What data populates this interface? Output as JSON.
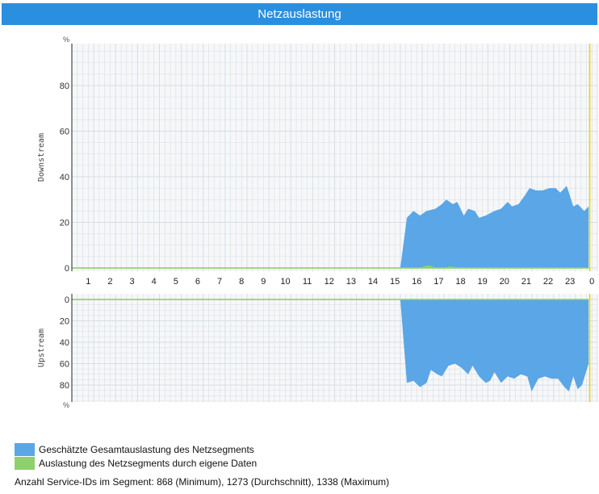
{
  "header": {
    "title": "Netzauslastung"
  },
  "colors": {
    "header_bg": "#2b8fe0",
    "total_fill": "#5aa6e6",
    "own_fill": "#8fd06a",
    "grid": "#d8dee6",
    "current_hour_line": "#e8d200"
  },
  "chart_data": {
    "type": "area",
    "x_ticks": [
      "1",
      "2",
      "3",
      "4",
      "5",
      "6",
      "7",
      "8",
      "9",
      "10",
      "11",
      "12",
      "13",
      "14",
      "15",
      "16",
      "17",
      "18",
      "19",
      "20",
      "21",
      "22",
      "23",
      "0"
    ],
    "grid": true,
    "panels": [
      {
        "name": "downstream",
        "ylabel": "Downstream",
        "unit": "%",
        "ylim": [
          0,
          100
        ],
        "y_ticks": [
          0,
          20,
          40,
          60,
          80
        ],
        "series": [
          {
            "name": "Geschätzte Gesamtauslastung des Netzsegments",
            "color": "#5aa6e6",
            "points": [
              [
                15.0,
                0
              ],
              [
                15.3,
                22
              ],
              [
                15.6,
                25
              ],
              [
                15.9,
                23
              ],
              [
                16.2,
                25
              ],
              [
                16.6,
                26
              ],
              [
                16.9,
                28
              ],
              [
                17.1,
                30
              ],
              [
                17.4,
                28
              ],
              [
                17.6,
                29
              ],
              [
                17.9,
                23
              ],
              [
                18.1,
                26
              ],
              [
                18.4,
                25
              ],
              [
                18.6,
                22
              ],
              [
                18.9,
                23
              ],
              [
                19.3,
                25
              ],
              [
                19.6,
                26
              ],
              [
                19.9,
                29
              ],
              [
                20.1,
                27
              ],
              [
                20.4,
                28
              ],
              [
                20.7,
                32
              ],
              [
                20.9,
                35
              ],
              [
                21.2,
                34
              ],
              [
                21.5,
                34
              ],
              [
                21.8,
                35
              ],
              [
                22.1,
                35
              ],
              [
                22.3,
                33
              ],
              [
                22.6,
                36
              ],
              [
                22.9,
                27
              ],
              [
                23.1,
                28
              ],
              [
                23.4,
                25
              ],
              [
                23.6,
                27
              ]
            ]
          },
          {
            "name": "Auslastung des Netzsegments durch eigene Daten",
            "color": "#8fd06a",
            "points": [
              [
                0,
                0
              ],
              [
                15.9,
                0
              ],
              [
                16.3,
                1
              ],
              [
                16.6,
                0
              ],
              [
                17.0,
                0
              ],
              [
                17.3,
                0.5
              ],
              [
                17.6,
                0
              ],
              [
                23.6,
                0
              ]
            ]
          }
        ]
      },
      {
        "name": "upstream",
        "ylabel": "Upstream",
        "unit": "%",
        "ylim": [
          0,
          100
        ],
        "y_ticks": [
          0,
          20,
          40,
          60,
          80
        ],
        "inverted": true,
        "series": [
          {
            "name": "Geschätzte Gesamtauslastung des Netzsegments",
            "color": "#5aa6e6",
            "points": [
              [
                15.0,
                0
              ],
              [
                15.3,
                78
              ],
              [
                15.6,
                76
              ],
              [
                15.9,
                82
              ],
              [
                16.2,
                78
              ],
              [
                16.4,
                66
              ],
              [
                16.7,
                70
              ],
              [
                16.9,
                72
              ],
              [
                17.2,
                62
              ],
              [
                17.5,
                60
              ],
              [
                17.8,
                64
              ],
              [
                18.1,
                70
              ],
              [
                18.3,
                62
              ],
              [
                18.6,
                72
              ],
              [
                18.9,
                78
              ],
              [
                19.1,
                76
              ],
              [
                19.3,
                68
              ],
              [
                19.6,
                78
              ],
              [
                19.9,
                72
              ],
              [
                20.2,
                74
              ],
              [
                20.5,
                70
              ],
              [
                20.8,
                72
              ],
              [
                21.0,
                86
              ],
              [
                21.3,
                74
              ],
              [
                21.6,
                72
              ],
              [
                21.9,
                74
              ],
              [
                22.2,
                74
              ],
              [
                22.5,
                82
              ],
              [
                22.7,
                86
              ],
              [
                22.9,
                72
              ],
              [
                23.1,
                84
              ],
              [
                23.3,
                80
              ],
              [
                23.6,
                60
              ]
            ]
          },
          {
            "name": "Auslastung des Netzsegments durch eigene Daten",
            "color": "#8fd06a",
            "points": [
              [
                0,
                0
              ],
              [
                23.6,
                0
              ]
            ]
          }
        ]
      }
    ],
    "legend": [
      {
        "label": "Geschätzte Gesamtauslastung des Netzsegments",
        "color": "#5aa6e6"
      },
      {
        "label": "Auslastung des Netzsegments durch eigene Daten",
        "color": "#8fd06a"
      }
    ]
  },
  "footer": {
    "text": "Anzahl Service-IDs im Segment: 868 (Minimum), 1273 (Durchschnitt), 1338 (Maximum)"
  }
}
